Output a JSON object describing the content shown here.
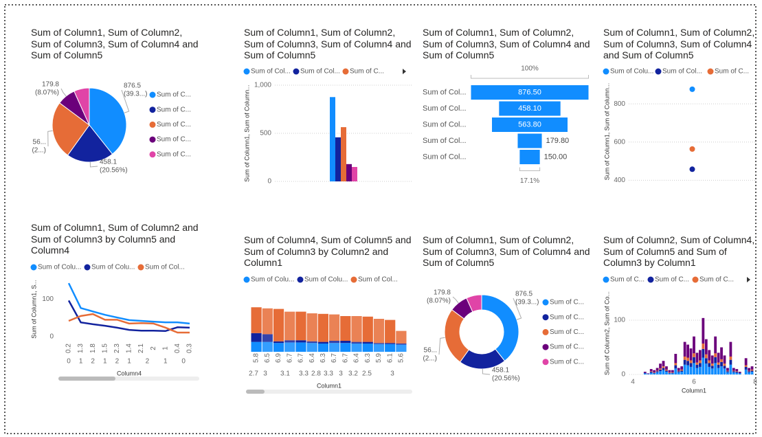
{
  "chart_data": [
    {
      "type": "pie",
      "title": "Sum of Column1, Sum of Column2, Sum of Column3, Sum of Column4 and Sum of Column5",
      "categories": [
        "Sum of C...",
        "Sum of C...",
        "Sum of C...",
        "Sum of C...",
        "Sum of C..."
      ],
      "values": [
        876.5,
        458.1,
        563.8,
        179.8,
        150
      ],
      "value_labels": [
        [
          "876.5",
          "(39.3...)"
        ],
        [
          "458.1",
          "(20.56%)"
        ],
        [
          "56...",
          "(2...)"
        ],
        [
          "179.8",
          "(8.07%)"
        ],
        null
      ],
      "colors": [
        "#118DFF",
        "#12239E",
        "#E66C37",
        "#6B007B",
        "#E044A7"
      ]
    },
    {
      "type": "bar",
      "title": "Sum of Column1, Sum of Column2, Sum of Column3, Sum of Column4 and Sum of Column5",
      "categories": [
        null
      ],
      "series": [
        {
          "name": "Sum of Col...",
          "color": "#118DFF",
          "values": [
            876.5
          ]
        },
        {
          "name": "Sum of Col...",
          "color": "#12239E",
          "values": [
            458.1
          ]
        },
        {
          "name": "Sum of C...",
          "color": "#E66C37",
          "values": [
            563.8
          ]
        },
        {
          "color": "#6B007B",
          "values": [
            179.8
          ]
        },
        {
          "color": "#E044A7",
          "values": [
            150
          ]
        }
      ],
      "ylabel": "Sum of Column1, Sum of Column...",
      "ylim": [
        0,
        1000
      ],
      "yticks": [
        0,
        500,
        {
          "value": 1000,
          "label": "1,000"
        }
      ],
      "grid": true
    },
    {
      "type": "funnel",
      "title": "Sum of Column1, Sum of Column2, Sum of Column3, Sum of Column4 and Sum of Column5",
      "categories": [
        "Sum of Col...",
        "Sum of Col...",
        "Sum of Col...",
        "Sum of Col...",
        "Sum of Col..."
      ],
      "values": [
        876.5,
        458.1,
        563.8,
        179.8,
        150
      ],
      "value_labels": [
        "876.50",
        "458.10",
        "563.80",
        "179.80",
        "150.00"
      ],
      "top_label": "100%",
      "bottom_label": "17.1%",
      "color": "#118DFF"
    },
    {
      "type": "scatter",
      "title": "Sum of Column1, Sum of Column2, Sum of Column3, Sum of Column4 and Sum of Column5",
      "categories": [
        null
      ],
      "series": [
        {
          "name": "Sum of Colu...",
          "color": "#118DFF",
          "values": [
            876.5
          ]
        },
        {
          "name": "Sum of Col...",
          "color": "#12239E",
          "values": [
            458.1
          ]
        },
        {
          "name": "Sum of C...",
          "color": "#E66C37",
          "values": [
            563.8
          ]
        }
      ],
      "ylabel": "Sum of Column1, Sum of Column...",
      "ylim": [
        380,
        930
      ],
      "yticks": [
        400,
        600,
        800
      ],
      "grid": true
    },
    {
      "type": "line",
      "title": "Sum of Column1, Sum of Column2 and Sum of Column3 by Column5 and Column4",
      "categories": [
        "0.2",
        "1.3",
        "1.8",
        "1.5",
        "2.3",
        "1.4",
        "2.1",
        "2",
        "1",
        "0.4",
        "0.3"
      ],
      "groups": [
        "0",
        "1",
        "2",
        "1",
        "2",
        "1",
        "2",
        "1",
        "0"
      ],
      "series": [
        {
          "name": "Sum of Colu...",
          "color": "#118DFF",
          "values": [
            142,
            76,
            67,
            58,
            51,
            44,
            42,
            40,
            38,
            38,
            35
          ]
        },
        {
          "name": "Sum of Colu...",
          "color": "#12239E",
          "values": [
            96,
            38,
            33,
            29,
            24,
            18,
            16,
            16,
            15,
            25,
            24
          ]
        },
        {
          "name": "Sum of Col...",
          "color": "#E66C37",
          "values": [
            42,
            55,
            60,
            45,
            45,
            35,
            36,
            35,
            24,
            11,
            11
          ]
        }
      ],
      "ylabel": "Sum of Column1, S...",
      "xlabel": "Column4",
      "ylim": [
        -10,
        155
      ],
      "yticks": [
        0,
        100
      ],
      "grid": false
    },
    {
      "type": "stacked",
      "title": "Sum of Column4, Sum of Column5 and Sum of Column3 by Column2 and Column1",
      "categories": [
        "5.8",
        "6.5",
        "6.9",
        "6.7",
        "6.7",
        "6.4",
        "6.3",
        "6.7",
        "6.7",
        "6.4",
        "6.3",
        "5.9",
        "6.1",
        "5.6"
      ],
      "groups": [
        "2.7",
        "3",
        "3.1",
        "3.3",
        "2.8",
        "3.3",
        "3",
        "3.2",
        "2.5",
        "3"
      ],
      "series": [
        {
          "name": "Sum of Colu...",
          "color": "#118DFF",
          "values": [
            1.8,
            1.8,
            1.6,
            1.7,
            1.7,
            1.6,
            1.5,
            1.6,
            1.6,
            1.5,
            1.5,
            1.4,
            1.4,
            1.3
          ]
        },
        {
          "name": "Sum of Colu...",
          "color": "#12239E",
          "values": [
            1.6,
            1.4,
            0.3,
            0.4,
            0.4,
            0.3,
            0.3,
            0.4,
            0.4,
            0.3,
            0.3,
            0.2,
            0.2,
            0.2
          ]
        },
        {
          "name": "Sum of Col...",
          "color": "#E66C37",
          "values": [
            4.7,
            4.7,
            5.9,
            5.2,
            5.2,
            5.1,
            5.1,
            4.8,
            4.5,
            4.7,
            4.6,
            4.4,
            4.2,
            2.3
          ]
        }
      ],
      "xlabel": "Column1",
      "ylim": [
        0,
        9
      ]
    },
    {
      "type": "donut",
      "title": "Sum of Column1, Sum of Column2, Sum of Column3, Sum of Column4 and Sum of Column5",
      "categories": [
        "Sum of C...",
        "Sum of C...",
        "Sum of C...",
        "Sum of C...",
        "Sum of C..."
      ],
      "values": [
        876.5,
        458.1,
        563.8,
        179.8,
        150
      ],
      "value_labels": [
        [
          "876.5",
          "(39.3...)"
        ],
        [
          "458.1",
          "(20.56%)"
        ],
        [
          "56...",
          "(2...)"
        ],
        [
          "179.8",
          "(8.07%)"
        ],
        null
      ],
      "colors": [
        "#118DFF",
        "#12239E",
        "#E66C37",
        "#6B007B",
        "#E044A7"
      ]
    },
    {
      "type": "stacked",
      "title": "Sum of Column2, Sum of Column4, Sum of Column5 and Sum of Column3 by Column1",
      "x": [
        4.4,
        4.5,
        4.6,
        4.7,
        4.8,
        4.9,
        5.0,
        5.1,
        5.2,
        5.3,
        5.4,
        5.5,
        5.6,
        5.7,
        5.8,
        5.9,
        6.0,
        6.1,
        6.2,
        6.3,
        6.4,
        6.5,
        6.6,
        6.7,
        6.8,
        6.9,
        7.0,
        7.1,
        7.2,
        7.3,
        7.4,
        7.5,
        7.7,
        7.8,
        7.9
      ],
      "series": [
        {
          "name": "Sum of C...",
          "color": "#118DFF",
          "values": [
            2,
            1,
            3,
            2,
            4,
            6,
            8,
            5,
            2,
            2,
            11,
            4,
            5,
            18,
            17,
            14,
            21,
            12,
            14,
            31,
            20,
            14,
            11,
            21,
            12,
            15,
            11,
            4,
            18,
            4,
            3,
            2,
            9,
            4,
            5
          ]
        },
        {
          "name": "Sum of C...",
          "color": "#12239E",
          "values": [
            1,
            0,
            2,
            1,
            2,
            3,
            4,
            2,
            1,
            1,
            6,
            2,
            2,
            9,
            8,
            7,
            11,
            6,
            7,
            16,
            10,
            7,
            5,
            11,
            6,
            8,
            5,
            2,
            9,
            2,
            2,
            1,
            5,
            2,
            2
          ]
        },
        {
          "name": "Sum of C...",
          "color": "#E66C37",
          "values": [
            0,
            0,
            1,
            1,
            1,
            2,
            3,
            2,
            1,
            1,
            4,
            1,
            2,
            6,
            6,
            5,
            7,
            4,
            5,
            10,
            7,
            5,
            4,
            7,
            4,
            5,
            4,
            1,
            6,
            1,
            1,
            0,
            3,
            1,
            2
          ]
        },
        {
          "color": "#6B007B",
          "values": [
            2,
            1,
            4,
            4,
            5,
            9,
            10,
            6,
            4,
            4,
            17,
            5,
            6,
            27,
            24,
            22,
            31,
            18,
            19,
            47,
            28,
            19,
            15,
            31,
            18,
            22,
            15,
            5,
            27,
            5,
            4,
            2,
            13,
            5,
            6
          ]
        }
      ],
      "ylabel": "Sum of Column2, Sum of Co...",
      "xlabel": "Column1",
      "xlim": [
        4,
        8
      ],
      "xticks": [
        4,
        6,
        8
      ],
      "ylim": [
        0,
        150
      ],
      "yticks": [
        0,
        100
      ],
      "grid": true
    }
  ]
}
